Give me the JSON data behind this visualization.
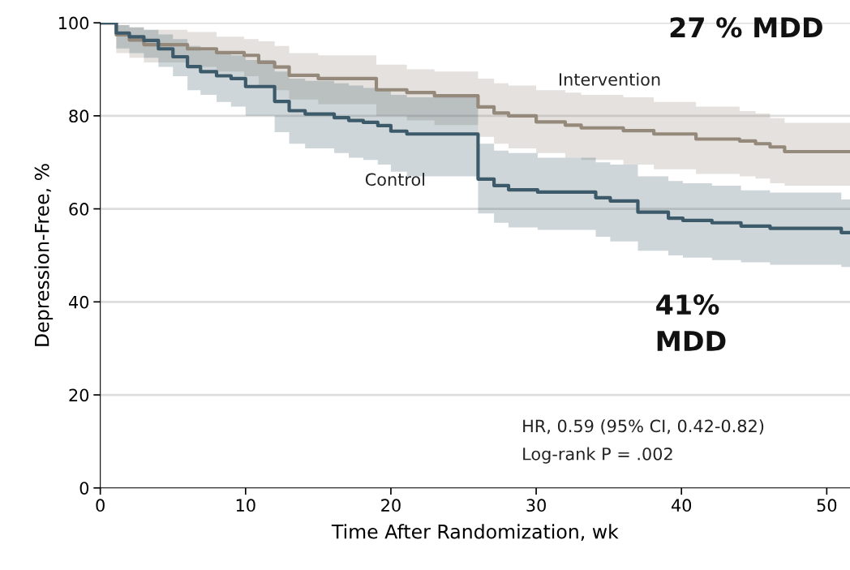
{
  "chart_data": {
    "type": "step",
    "xlabel": "Time After Randomization, wk",
    "ylabel": "Depression-Free, %",
    "xlim": [
      0,
      51.6
    ],
    "xticks": [
      0,
      10,
      20,
      30,
      40,
      50
    ],
    "ylim": [
      0,
      100
    ],
    "yticks": [
      0,
      20,
      40,
      60,
      80,
      100
    ],
    "grid": "y",
    "legend": false,
    "series": [
      {
        "name": "Intervention",
        "color": "#94897a",
        "x": [
          0,
          1.1,
          2,
          3,
          6,
          8,
          9.9,
          10.9,
          12,
          13,
          15,
          19,
          21.1,
          23,
          26,
          27.1,
          28.1,
          30,
          32,
          33.1,
          36,
          38.1,
          41,
          44,
          45.1,
          46.1,
          47.1,
          51.6
        ],
        "values": [
          100,
          97.4,
          96.3,
          95.3,
          94.4,
          93.6,
          93,
          91.5,
          90.5,
          88.7,
          88,
          85.6,
          85,
          84.3,
          81.9,
          80.6,
          80,
          78.7,
          78,
          77.4,
          76.8,
          76.1,
          75,
          74.6,
          74,
          73.3,
          72.3,
          72.3
        ],
        "upper": [
          100,
          99.5,
          99,
          98.5,
          98,
          97,
          96.5,
          96,
          95,
          93.5,
          93,
          91,
          90,
          89.5,
          88,
          87,
          86.5,
          85.5,
          85,
          84.5,
          84,
          83,
          82,
          81,
          80.5,
          79.5,
          78.5,
          78.5
        ],
        "lower": [
          100,
          93.5,
          92.5,
          91.5,
          90.5,
          89.5,
          88.5,
          86.5,
          85.5,
          83.5,
          82.5,
          80,
          79,
          78,
          75.5,
          74,
          73,
          72,
          71,
          70.5,
          69.5,
          68.5,
          67.5,
          67,
          66.5,
          65.5,
          65,
          65
        ]
      },
      {
        "name": "Control",
        "color": "#3c5a69",
        "x": [
          0,
          1.1,
          2,
          3,
          4,
          5,
          6,
          6.9,
          8,
          9,
          10,
          12,
          13,
          14.1,
          16.1,
          17.1,
          18.1,
          19.1,
          20,
          21.1,
          26,
          27.1,
          28.1,
          30.1,
          34.1,
          35.1,
          37,
          39.1,
          40.1,
          42.1,
          44.1,
          46.1,
          51,
          51.6
        ],
        "values": [
          100,
          97.8,
          97,
          96.2,
          94.4,
          92.7,
          90.6,
          89.5,
          88.6,
          88,
          86.3,
          83.1,
          81.1,
          80.4,
          79.6,
          79,
          78.6,
          77.9,
          76.7,
          76.1,
          66.4,
          65,
          64.1,
          63.6,
          62.4,
          61.7,
          59.3,
          58,
          57.5,
          57,
          56.3,
          55.8,
          54.9,
          54.9
        ],
        "upper": [
          100,
          99.5,
          99,
          98.5,
          97.5,
          96.5,
          95,
          94,
          93.5,
          93,
          92,
          89.5,
          88,
          87.5,
          87,
          86.5,
          86,
          85.5,
          84.5,
          84,
          74,
          72.5,
          72,
          71,
          70,
          69.5,
          67,
          66,
          65.5,
          65,
          64,
          63.5,
          62,
          62
        ],
        "lower": [
          100,
          94.5,
          93.5,
          92.5,
          90.5,
          88.5,
          85.5,
          84.5,
          83,
          82,
          80,
          76.5,
          74,
          73,
          72,
          71,
          70.5,
          69.5,
          68,
          67,
          59,
          57,
          56,
          55.5,
          54,
          53,
          51,
          50,
          49.5,
          49,
          48.5,
          48,
          47.5,
          47.5
        ]
      }
    ],
    "annotations": [
      "27 % MDD",
      "41%\nMDD",
      "HR, 0.59 (95% CI, 0.42-0.82)",
      "Log-rank P = .002"
    ]
  }
}
